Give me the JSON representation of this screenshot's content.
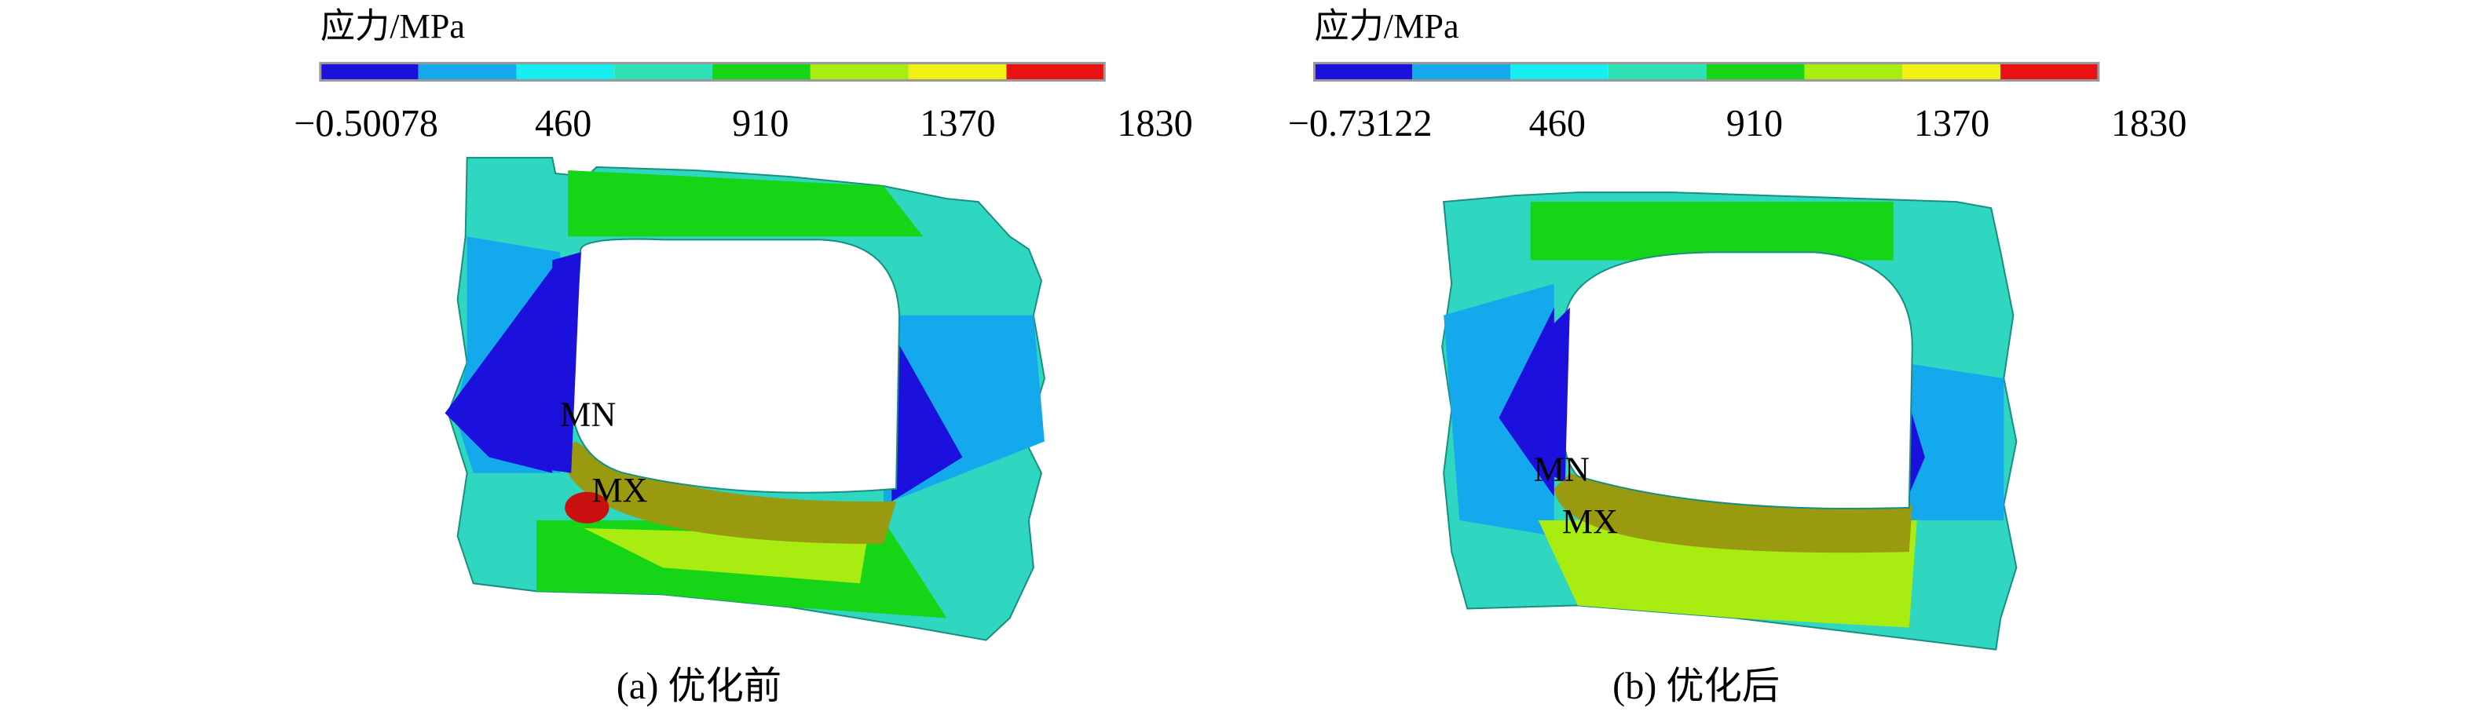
{
  "panels": [
    {
      "legend_title": "应力/MPa",
      "colorbar_colors": [
        "#1b10dc",
        "#14a8ec",
        "#16eef2",
        "#2fe2b6",
        "#16d416",
        "#a8ec12",
        "#f0f012",
        "#e81212"
      ],
      "colorbar_labels": [
        "−0.50078",
        "460",
        "910",
        "1370",
        "1830"
      ],
      "markers": [
        "MN",
        "MX"
      ],
      "caption": "(a) 优化前"
    },
    {
      "legend_title": "应力/MPa",
      "colorbar_colors": [
        "#1b10dc",
        "#14a8ec",
        "#16eef2",
        "#2fe2b6",
        "#16d416",
        "#a8ec12",
        "#f0f012",
        "#e81212"
      ],
      "colorbar_labels": [
        "−0.73122",
        "460",
        "910",
        "1370",
        "1830"
      ],
      "markers": [
        "MN",
        "MX"
      ],
      "caption": "(b) 优化后"
    }
  ]
}
